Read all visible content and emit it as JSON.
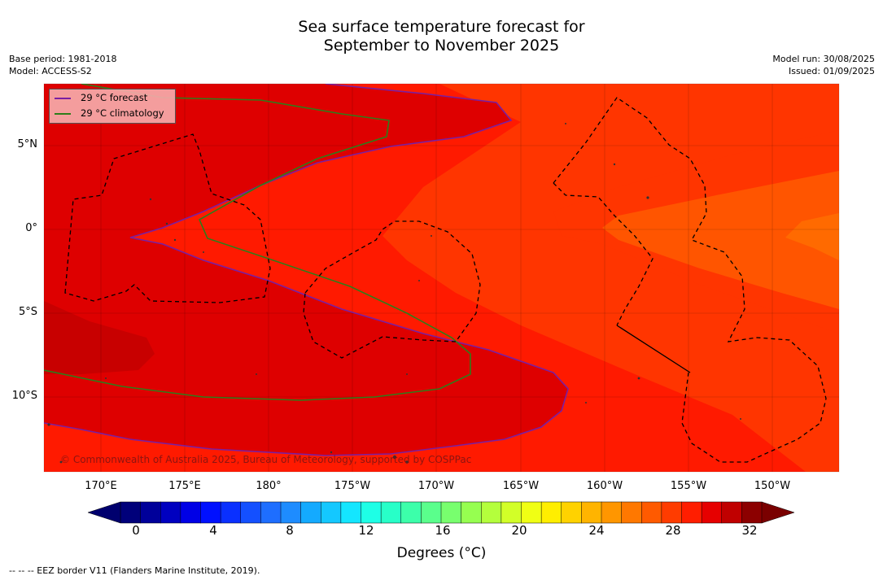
{
  "title_line1": "Sea surface temperature forecast for",
  "title_line2": "September to November 2025",
  "base_period": "Base period: 1981-2018",
  "model": "Model: ACCESS-S2",
  "model_run": "Model run: 30/08/2025",
  "issued": "Issued: 01/09/2025",
  "legend": [
    {
      "label": "29 °C  forecast",
      "color": "#7a1fa2"
    },
    {
      "label": "29 °C  climatology",
      "color": "#2e7d1a"
    }
  ],
  "lon_labels": [
    "170°E",
    "175°E",
    "180°",
    "175°W",
    "170°W",
    "165°W",
    "160°W",
    "155°W",
    "150°W"
  ],
  "lat_labels": [
    "5°N",
    "0°",
    "5°S",
    "10°S"
  ],
  "credit": "© Commonwealth of Australia 2025, Bureau of Meteorology, supported by COSPPac",
  "colorbar": {
    "ticks": [
      "0",
      "4",
      "8",
      "12",
      "16",
      "20",
      "24",
      "28",
      "32"
    ],
    "label": "Degrees (°C)",
    "colors": [
      "#00007a",
      "#00009a",
      "#0000c0",
      "#0000e6",
      "#0010ff",
      "#0a30ff",
      "#1450ff",
      "#1e6eff",
      "#1e8cff",
      "#14aaff",
      "#14c8ff",
      "#14e6ff",
      "#1effe6",
      "#28ffc8",
      "#3cffaa",
      "#5aff8c",
      "#78ff6e",
      "#96ff50",
      "#b4ff3c",
      "#d2ff28",
      "#f0ff14",
      "#ffee00",
      "#ffd200",
      "#ffb400",
      "#ff9600",
      "#ff7800",
      "#ff5a00",
      "#ff3c00",
      "#ff1e00",
      "#e60000",
      "#c00000",
      "#8c0000"
    ]
  },
  "footnote": "--  --  -- EEZ border V11 (Flanders Marine Institute, 2019).",
  "map_colors": {
    "dark_red": "#de0000",
    "deep_red": "#c80000",
    "red": "#ff1a00",
    "orange_red": "#ff3500",
    "orange": "#ff5500",
    "light_orange": "#ff6a00"
  }
}
